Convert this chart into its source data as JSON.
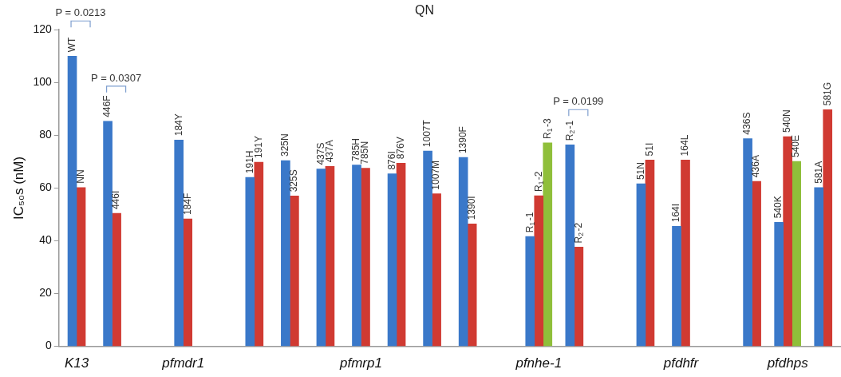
{
  "chart_data": {
    "type": "bar",
    "title": "QN",
    "ylabel": "IC₅₀s (nM)",
    "categories": [
      "K13",
      null,
      null,
      "pfmdr1",
      null,
      null,
      null,
      null,
      "pfmrp1",
      null,
      null,
      null,
      null,
      "pfnhe-1",
      null,
      null,
      null,
      "pfdhfr",
      null,
      null,
      "pfdhps",
      null
    ],
    "series": [
      {
        "color": "#3a78c9",
        "values": [
          110,
          85.3,
          null,
          78.2,
          null,
          64.0,
          70.4,
          67.2,
          68.7,
          65.4,
          74.0,
          71.6,
          null,
          41.6,
          76.4,
          null,
          61.6,
          45.5,
          null,
          78.7,
          47.0,
          60.2
        ]
      },
      {
        "color": "#d03a32",
        "values": [
          60.2,
          50.4,
          null,
          48.3,
          null,
          69.8,
          57.0,
          68.2,
          67.5,
          69.4,
          57.8,
          46.4,
          null,
          57.1,
          37.6,
          null,
          70.6,
          70.6,
          null,
          62.5,
          79.5,
          89.7
        ]
      },
      {
        "color": "#8fbf3a",
        "values": [
          null,
          null,
          null,
          null,
          null,
          null,
          null,
          null,
          null,
          null,
          null,
          null,
          null,
          77.1,
          null,
          null,
          null,
          null,
          null,
          null,
          70.1,
          null
        ]
      }
    ],
    "ylim": [
      0,
      120
    ],
    "yticks": [
      0,
      20,
      40,
      60,
      80,
      100,
      120
    ],
    "annotations": [
      "P = 0.0213",
      "P = 0.0307",
      "P = 0.0199",
      {
        "text": "WT",
        "y": 110
      },
      {
        "text": "NN",
        "y": 60.2
      },
      {
        "text": "446F",
        "y": 85.3
      },
      {
        "text": "446I",
        "y": 50.4
      },
      {
        "text": "184Y",
        "y": 78.2
      },
      {
        "text": "184F",
        "y": 48.3
      },
      {
        "text": "191H",
        "y": 64.0
      },
      {
        "text": "191Y",
        "y": 69.8
      },
      {
        "text": "325N",
        "y": 70.4
      },
      {
        "text": "325S",
        "y": 57.0
      },
      {
        "text": "437S",
        "y": 67.2
      },
      {
        "text": "437A",
        "y": 68.2
      },
      {
        "text": "785H",
        "y": 68.7
      },
      {
        "text": "785N",
        "y": 67.5
      },
      {
        "text": "876I",
        "y": 65.4
      },
      {
        "text": "876V",
        "y": 69.4
      },
      {
        "text": "1007T",
        "y": 74.0
      },
      {
        "text": "1007M",
        "y": 57.8
      },
      {
        "text": "1390F",
        "y": 71.6
      },
      {
        "text": "1390I",
        "y": 46.4
      },
      {
        "text": "R$_{1}$-1",
        "y": 41.6
      },
      {
        "text": "R$_{1}$-2",
        "y": 57.1
      },
      {
        "text": "R$_{1}$-3",
        "y": 77.1
      },
      {
        "text": "R$_{2}$-1",
        "y": 76.4
      },
      {
        "text": "R$_{2}$-2",
        "y": 37.6
      },
      {
        "text": "51N",
        "y": 61.6
      },
      {
        "text": "51I",
        "y": 70.6
      },
      {
        "text": "164I",
        "y": 45.5
      },
      {
        "text": "164L",
        "y": 70.6
      },
      {
        "text": "436S",
        "y": 78.7
      },
      {
        "text": "436A",
        "y": 62.5
      },
      {
        "text": "540K",
        "y": 47.0
      },
      {
        "text": "540N",
        "y": 79.5
      },
      {
        "text": "540E",
        "y": 70.1
      },
      {
        "text": "581A",
        "y": 60.2
      },
      {
        "text": "581G",
        "y": 89.7
      }
    ]
  }
}
